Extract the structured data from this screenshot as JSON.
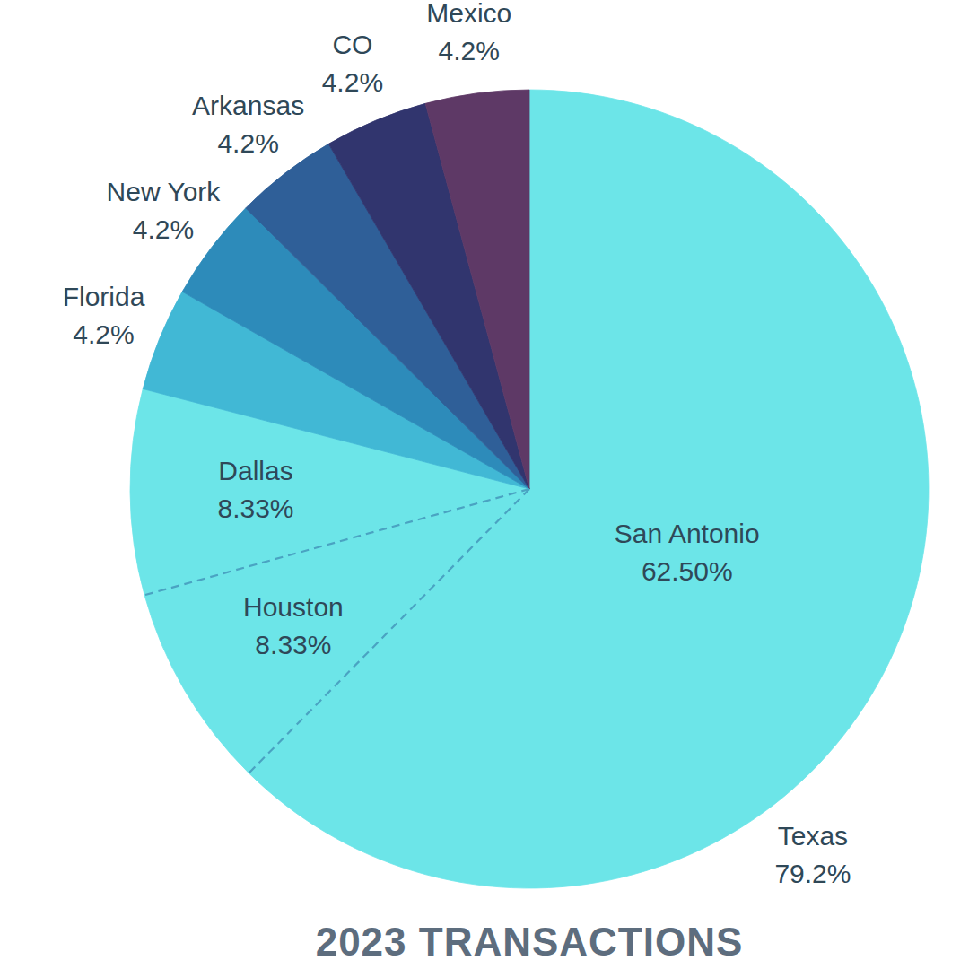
{
  "chart_data": {
    "type": "pie",
    "title": "2023 TRANSACTIONS",
    "categories": [
      "San Antonio",
      "Houston",
      "Dallas",
      "Florida",
      "New York",
      "Arkansas",
      "CO",
      "Mexico"
    ],
    "values": [
      62.5,
      8.33,
      8.33,
      4.2,
      4.2,
      4.2,
      4.2,
      4.2
    ],
    "value_labels": [
      "62.50%",
      "8.33%",
      "8.33%",
      "4.2%",
      "4.2%",
      "4.2%",
      "4.2%",
      "4.2%"
    ],
    "colors": [
      "#6ce5e8",
      "#6ce5e8",
      "#6ce5e8",
      "#41b8d5",
      "#2d8bba",
      "#2f5f98",
      "#31356e",
      "#5e3966"
    ],
    "data_labels": true,
    "groups": [
      {
        "name": "Texas",
        "value": 79.2,
        "value_label": "79.2%",
        "categories": [
          "San Antonio",
          "Houston",
          "Dallas"
        ]
      }
    ]
  }
}
